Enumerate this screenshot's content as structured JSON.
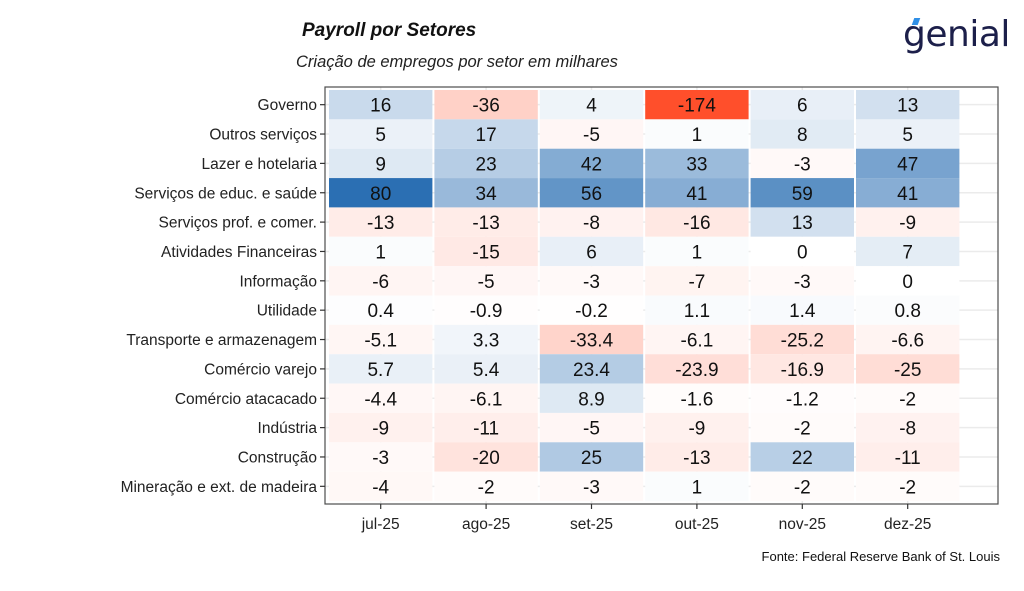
{
  "header": {
    "title": "Payroll por Setores",
    "subtitle": "Criação de empregos por setor em milhares",
    "logo_text": "genial"
  },
  "footer": {
    "source": "Fonte: Federal Reserve Bank of St. Louis"
  },
  "chart_data": {
    "type": "heatmap",
    "title": "Payroll por Setores",
    "subtitle": "Criação de empregos por setor em milhares",
    "xlabel": "",
    "ylabel": "",
    "x": [
      "jul-25",
      "ago-25",
      "set-25",
      "out-25",
      "nov-25",
      "dez-25"
    ],
    "y": [
      "Governo",
      "Outros serviços",
      "Lazer e hotelaria",
      "Serviços de educ. e saúde",
      "Serviços prof. e comer.",
      "Atividades Financeiras",
      "Informação",
      "Utilidade",
      "Transporte e armazenagem",
      "Comércio varejo",
      "Comércio atacacado",
      "Indústria",
      "Construção",
      "Mineração e ext. de madeira"
    ],
    "values": [
      [
        16,
        -36,
        4,
        -174,
        6,
        13
      ],
      [
        5,
        17,
        -5,
        1,
        8,
        5
      ],
      [
        9,
        23,
        42,
        33,
        -3,
        47
      ],
      [
        80,
        34,
        56,
        41,
        59,
        41
      ],
      [
        -13,
        -13,
        -8,
        -16,
        13,
        -9
      ],
      [
        1,
        -15,
        6,
        1,
        0,
        7
      ],
      [
        -6,
        -5,
        -3,
        -7,
        -3,
        0
      ],
      [
        0.4,
        -0.9,
        -0.2,
        1.1,
        1.4,
        0.8
      ],
      [
        -5.1,
        3.3,
        -33.4,
        -6.1,
        -25.2,
        -6.6
      ],
      [
        5.7,
        5.4,
        23.4,
        -23.9,
        -16.9,
        -25
      ],
      [
        -4.4,
        -6.1,
        8.9,
        -1.6,
        -1.2,
        -2
      ],
      [
        -9,
        -11,
        -5,
        -9,
        -2,
        -8
      ],
      [
        -3,
        -20,
        25,
        -13,
        22,
        -11
      ],
      [
        -4,
        -2,
        -3,
        1,
        -2,
        -2
      ]
    ],
    "color_scale": {
      "negative": "#ff4f2b",
      "zero": "#ffffff",
      "positive": "#2b6fb3",
      "min": -174,
      "max": 80
    },
    "grid": true,
    "legend": "none"
  }
}
